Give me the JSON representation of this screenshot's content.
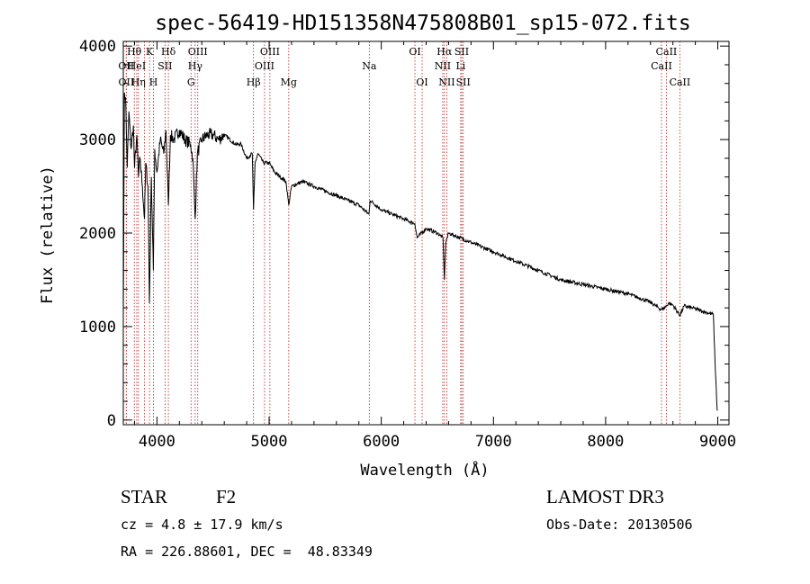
{
  "chart_data": {
    "type": "line",
    "title": "spec-56419-HD151358N475808B01_sp15-072.fits",
    "xlabel": "Wavelength (Å)",
    "ylabel": "Flux (relative)",
    "xlim": [
      3700,
      9100
    ],
    "ylim": [
      -50,
      4050
    ],
    "xticks": [
      4000,
      5000,
      6000,
      7000,
      8000,
      9000
    ],
    "yticks": [
      0,
      1000,
      2000,
      3000,
      4000
    ],
    "series": [
      {
        "name": "spectrum",
        "x": [
          3700,
          3710,
          3720,
          3735,
          3750,
          3770,
          3790,
          3800,
          3820,
          3835,
          3850,
          3870,
          3889,
          3900,
          3920,
          3933,
          3950,
          3968,
          3980,
          4000,
          4030,
          4060,
          4080,
          4102,
          4120,
          4150,
          4200,
          4250,
          4300,
          4320,
          4340,
          4360,
          4400,
          4450,
          4500,
          4550,
          4600,
          4650,
          4700,
          4750,
          4800,
          4850,
          4861,
          4875,
          4900,
          4950,
          5000,
          5050,
          5100,
          5150,
          5175,
          5200,
          5300,
          5400,
          5500,
          5600,
          5700,
          5800,
          5890,
          5900,
          6000,
          6100,
          6200,
          6300,
          6320,
          6400,
          6500,
          6550,
          6563,
          6575,
          6600,
          6700,
          6800,
          7000,
          7200,
          7400,
          7600,
          7800,
          8000,
          8200,
          8400,
          8498,
          8542,
          8560,
          8600,
          8662,
          8700,
          8800,
          8900,
          8960,
          8980,
          8995
        ],
        "values": [
          1100,
          3500,
          3450,
          2700,
          3300,
          2900,
          3150,
          2700,
          3050,
          2600,
          2800,
          2500,
          2150,
          2750,
          2500,
          1250,
          2600,
          1600,
          2900,
          2650,
          3000,
          2850,
          3100,
          2300,
          3050,
          3000,
          3100,
          3000,
          2950,
          2800,
          2150,
          2850,
          3000,
          3050,
          3050,
          3000,
          3050,
          3000,
          2950,
          2950,
          2800,
          2850,
          2250,
          2750,
          2850,
          2750,
          2750,
          2650,
          2600,
          2550,
          2300,
          2500,
          2550,
          2500,
          2450,
          2400,
          2350,
          2300,
          2200,
          2350,
          2250,
          2200,
          2150,
          2100,
          1950,
          2050,
          2000,
          1950,
          1500,
          1900,
          2000,
          1950,
          1900,
          1800,
          1700,
          1600,
          1500,
          1450,
          1400,
          1350,
          1260,
          1180,
          1220,
          1250,
          1230,
          1120,
          1220,
          1190,
          1150,
          1130,
          500,
          100
        ]
      }
    ],
    "line_markers": [
      {
        "x": 3726,
        "label": "OII",
        "row": 2
      },
      {
        "x": 3727,
        "label": "OII",
        "row": 3
      },
      {
        "x": 3798,
        "label": "Hθ",
        "row": 1
      },
      {
        "x": 3820,
        "label": "HeI",
        "row": 2
      },
      {
        "x": 3835,
        "label": "Hη",
        "row": 3
      },
      {
        "x": 3889,
        "label": "",
        "row": 0
      },
      {
        "x": 3934,
        "label": "K",
        "row": 1
      },
      {
        "x": 3969,
        "label": "H",
        "row": 3
      },
      {
        "x": 4072,
        "label": "SII",
        "row": 2
      },
      {
        "x": 4102,
        "label": "Hδ",
        "row": 1
      },
      {
        "x": 4304,
        "label": "G",
        "row": 3
      },
      {
        "x": 4341,
        "label": "Hγ",
        "row": 2
      },
      {
        "x": 4364,
        "label": "OIII",
        "row": 1
      },
      {
        "x": 4861,
        "label": "Hβ",
        "row": 3
      },
      {
        "x": 4959,
        "label": "OIII",
        "row": 2
      },
      {
        "x": 5007,
        "label": "OIII",
        "row": 1
      },
      {
        "x": 5175,
        "label": "Mg",
        "row": 3
      },
      {
        "x": 5893,
        "label": "Na",
        "row": 2
      },
      {
        "x": 6300,
        "label": "OI",
        "row": 1
      },
      {
        "x": 6364,
        "label": "OI",
        "row": 3
      },
      {
        "x": 6548,
        "label": "NII",
        "row": 2
      },
      {
        "x": 6563,
        "label": "Hα",
        "row": 1
      },
      {
        "x": 6584,
        "label": "NII",
        "row": 3
      },
      {
        "x": 6708,
        "label": "Li",
        "row": 2
      },
      {
        "x": 6717,
        "label": "SII",
        "row": 1
      },
      {
        "x": 6731,
        "label": "SII",
        "row": 3
      },
      {
        "x": 8498,
        "label": "CaII",
        "row": 2
      },
      {
        "x": 8542,
        "label": "CaII",
        "row": 1
      },
      {
        "x": 8662,
        "label": "CaII",
        "row": 3
      }
    ],
    "grid": false,
    "legend": "none"
  },
  "info": {
    "object_type": "STAR",
    "subclass": "F2",
    "survey": "LAMOST DR3",
    "redshift": "cz = 4.8 ± 17.9 km/s",
    "obs_date": "Obs-Date: 20130506",
    "coords": "RA = 226.88601, DEC =  48.83349"
  },
  "colors": {
    "spectrum": "#000000",
    "marker": "#b22222",
    "axes": "#000000"
  }
}
